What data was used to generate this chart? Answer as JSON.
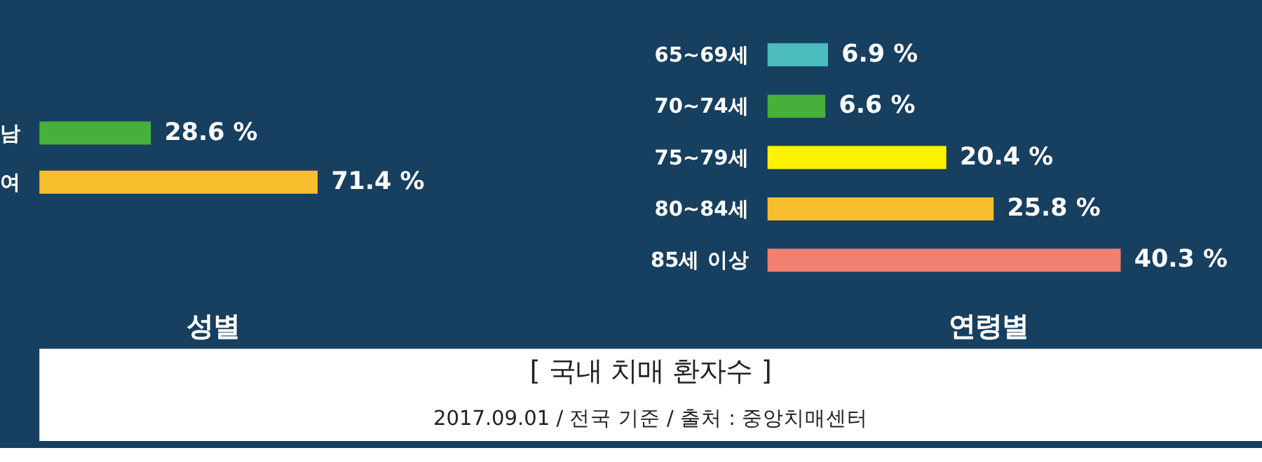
{
  "chart_data": [
    {
      "type": "bar",
      "orientation": "horizontal",
      "title": "성별",
      "categories": [
        "남",
        "여"
      ],
      "values": [
        28.6,
        71.4
      ],
      "colors": [
        "#46b03b",
        "#f8be2e"
      ],
      "value_labels": [
        "28.6 %",
        "71.4 %"
      ],
      "annotations": [
        "[ 국내 치매 환자수 ]",
        "2017.09.01 / 전국 기준 / 출처 : 중앙치매센터"
      ]
    },
    {
      "type": "bar",
      "orientation": "horizontal",
      "title": "연령별",
      "categories": [
        "65~69세",
        "70~74세",
        "75~79세",
        "80~84세",
        "85세 이상"
      ],
      "values": [
        6.9,
        6.6,
        20.4,
        25.8,
        40.3
      ],
      "colors": [
        "#4dbcbf",
        "#46b03b",
        "#fff200",
        "#f8be2e",
        "#f08070"
      ],
      "value_labels": [
        "6.9 %",
        "6.6 %",
        "20.4 %",
        "25.8 %",
        "40.3 %"
      ]
    }
  ]
}
